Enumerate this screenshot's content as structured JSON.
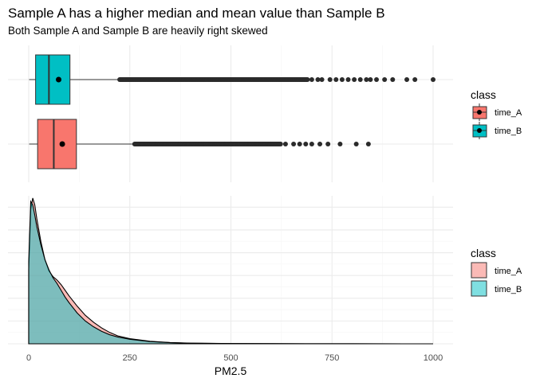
{
  "chart_data": [
    {
      "type": "box",
      "title": "Sample A has a higher median and mean value than Sample B",
      "subtitle": "Both Sample A and Sample B are heavily right skewed",
      "xlim": [
        0,
        1000
      ],
      "x_ticks": [
        0,
        250,
        500,
        750,
        1000
      ],
      "grid": true,
      "legend": {
        "title": "class",
        "position": "right",
        "entries": [
          {
            "label": "time_A",
            "color": "#F8766D"
          },
          {
            "label": "time_B",
            "color": "#00BFC4"
          }
        ]
      },
      "series": [
        {
          "name": "time_B",
          "color": "#00BFC4",
          "whisker_low": 1,
          "q1": 17,
          "median": 50,
          "q3": 102,
          "whisker_high": 225,
          "mean": 74,
          "outlier_dense_range": [
            225,
            690
          ],
          "outliers": [
            700,
            715,
            725,
            745,
            760,
            775,
            790,
            805,
            820,
            835,
            845,
            860,
            880,
            900,
            935,
            955,
            1000
          ]
        },
        {
          "name": "time_A",
          "color": "#F8766D",
          "whisker_low": 1,
          "q1": 22,
          "median": 62,
          "q3": 118,
          "whisker_high": 262,
          "mean": 83,
          "outlier_dense_range": [
            262,
            625
          ],
          "outliers": [
            635,
            655,
            670,
            685,
            700,
            720,
            740,
            770,
            810,
            840
          ]
        }
      ]
    },
    {
      "type": "area",
      "xlabel": "PM2.5",
      "ylabel": "",
      "xlim": [
        0,
        1000
      ],
      "x_ticks": [
        0,
        250,
        500,
        750,
        1000
      ],
      "grid": true,
      "legend": {
        "title": "class",
        "position": "right",
        "entries": [
          {
            "label": "time_A",
            "color": "#F8766D"
          },
          {
            "label": "time_B",
            "color": "#00BFC4"
          }
        ]
      },
      "series": [
        {
          "name": "time_A",
          "color": "#F8766D",
          "x": [
            0,
            5,
            10,
            15,
            20,
            30,
            40,
            50,
            60,
            70,
            80,
            90,
            100,
            120,
            140,
            160,
            180,
            200,
            220,
            250,
            300,
            350,
            400,
            500,
            600,
            700,
            800,
            1000
          ],
          "y": [
            0.0065,
            0.0118,
            0.0128,
            0.0122,
            0.011,
            0.009,
            0.0074,
            0.0064,
            0.0059,
            0.0056,
            0.0052,
            0.0047,
            0.0042,
            0.0033,
            0.0025,
            0.0019,
            0.0014,
            0.001,
            0.0007,
            0.00045,
            0.00022,
            0.00011,
            6e-05,
            2e-05,
            1e-05,
            5e-06,
            2e-06,
            0
          ]
        },
        {
          "name": "time_B",
          "color": "#00BFC4",
          "x": [
            0,
            5,
            10,
            15,
            20,
            30,
            40,
            50,
            60,
            70,
            80,
            90,
            100,
            120,
            140,
            160,
            180,
            200,
            220,
            250,
            300,
            350,
            400,
            500,
            600,
            700,
            800,
            1000
          ],
          "y": [
            0.0072,
            0.0125,
            0.0122,
            0.0113,
            0.0103,
            0.0087,
            0.0074,
            0.0065,
            0.0058,
            0.0053,
            0.0047,
            0.0041,
            0.0036,
            0.0027,
            0.002,
            0.0015,
            0.0011,
            0.0008,
            0.0006,
            0.0004,
            0.0002,
            0.0001,
            5e-05,
            2e-05,
            1e-05,
            4e-06,
            2e-06,
            0
          ]
        }
      ]
    }
  ]
}
